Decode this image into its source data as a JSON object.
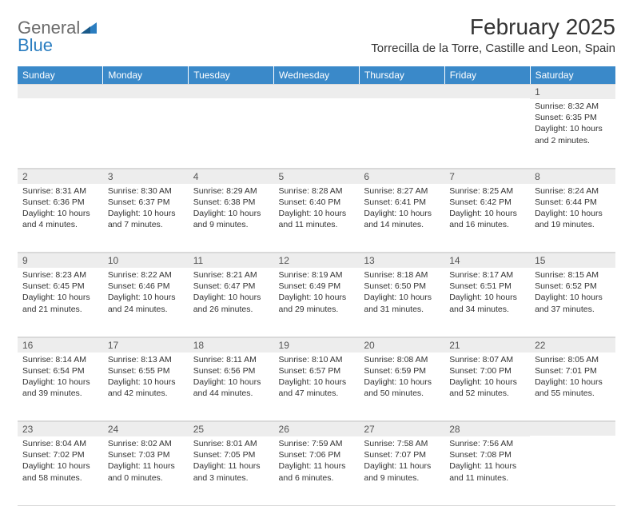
{
  "brand": {
    "word1": "General",
    "word2": "Blue"
  },
  "title": "February 2025",
  "location": "Torrecilla de la Torre, Castille and Leon, Spain",
  "colors": {
    "header_bg": "#3a89c9",
    "header_text": "#ffffff",
    "daynum_bg": "#ededed",
    "grid_border": "#d9d9d9",
    "text": "#333333",
    "logo_gray": "#6b6b6b",
    "logo_blue": "#2a7dc0"
  },
  "weekdays": [
    "Sunday",
    "Monday",
    "Tuesday",
    "Wednesday",
    "Thursday",
    "Friday",
    "Saturday"
  ],
  "first_weekday_index": 6,
  "days": [
    {
      "n": 1,
      "sunrise": "8:32 AM",
      "sunset": "6:35 PM",
      "daylight": "10 hours and 2 minutes."
    },
    {
      "n": 2,
      "sunrise": "8:31 AM",
      "sunset": "6:36 PM",
      "daylight": "10 hours and 4 minutes."
    },
    {
      "n": 3,
      "sunrise": "8:30 AM",
      "sunset": "6:37 PM",
      "daylight": "10 hours and 7 minutes."
    },
    {
      "n": 4,
      "sunrise": "8:29 AM",
      "sunset": "6:38 PM",
      "daylight": "10 hours and 9 minutes."
    },
    {
      "n": 5,
      "sunrise": "8:28 AM",
      "sunset": "6:40 PM",
      "daylight": "10 hours and 11 minutes."
    },
    {
      "n": 6,
      "sunrise": "8:27 AM",
      "sunset": "6:41 PM",
      "daylight": "10 hours and 14 minutes."
    },
    {
      "n": 7,
      "sunrise": "8:25 AM",
      "sunset": "6:42 PM",
      "daylight": "10 hours and 16 minutes."
    },
    {
      "n": 8,
      "sunrise": "8:24 AM",
      "sunset": "6:44 PM",
      "daylight": "10 hours and 19 minutes."
    },
    {
      "n": 9,
      "sunrise": "8:23 AM",
      "sunset": "6:45 PM",
      "daylight": "10 hours and 21 minutes."
    },
    {
      "n": 10,
      "sunrise": "8:22 AM",
      "sunset": "6:46 PM",
      "daylight": "10 hours and 24 minutes."
    },
    {
      "n": 11,
      "sunrise": "8:21 AM",
      "sunset": "6:47 PM",
      "daylight": "10 hours and 26 minutes."
    },
    {
      "n": 12,
      "sunrise": "8:19 AM",
      "sunset": "6:49 PM",
      "daylight": "10 hours and 29 minutes."
    },
    {
      "n": 13,
      "sunrise": "8:18 AM",
      "sunset": "6:50 PM",
      "daylight": "10 hours and 31 minutes."
    },
    {
      "n": 14,
      "sunrise": "8:17 AM",
      "sunset": "6:51 PM",
      "daylight": "10 hours and 34 minutes."
    },
    {
      "n": 15,
      "sunrise": "8:15 AM",
      "sunset": "6:52 PM",
      "daylight": "10 hours and 37 minutes."
    },
    {
      "n": 16,
      "sunrise": "8:14 AM",
      "sunset": "6:54 PM",
      "daylight": "10 hours and 39 minutes."
    },
    {
      "n": 17,
      "sunrise": "8:13 AM",
      "sunset": "6:55 PM",
      "daylight": "10 hours and 42 minutes."
    },
    {
      "n": 18,
      "sunrise": "8:11 AM",
      "sunset": "6:56 PM",
      "daylight": "10 hours and 44 minutes."
    },
    {
      "n": 19,
      "sunrise": "8:10 AM",
      "sunset": "6:57 PM",
      "daylight": "10 hours and 47 minutes."
    },
    {
      "n": 20,
      "sunrise": "8:08 AM",
      "sunset": "6:59 PM",
      "daylight": "10 hours and 50 minutes."
    },
    {
      "n": 21,
      "sunrise": "8:07 AM",
      "sunset": "7:00 PM",
      "daylight": "10 hours and 52 minutes."
    },
    {
      "n": 22,
      "sunrise": "8:05 AM",
      "sunset": "7:01 PM",
      "daylight": "10 hours and 55 minutes."
    },
    {
      "n": 23,
      "sunrise": "8:04 AM",
      "sunset": "7:02 PM",
      "daylight": "10 hours and 58 minutes."
    },
    {
      "n": 24,
      "sunrise": "8:02 AM",
      "sunset": "7:03 PM",
      "daylight": "11 hours and 0 minutes."
    },
    {
      "n": 25,
      "sunrise": "8:01 AM",
      "sunset": "7:05 PM",
      "daylight": "11 hours and 3 minutes."
    },
    {
      "n": 26,
      "sunrise": "7:59 AM",
      "sunset": "7:06 PM",
      "daylight": "11 hours and 6 minutes."
    },
    {
      "n": 27,
      "sunrise": "7:58 AM",
      "sunset": "7:07 PM",
      "daylight": "11 hours and 9 minutes."
    },
    {
      "n": 28,
      "sunrise": "7:56 AM",
      "sunset": "7:08 PM",
      "daylight": "11 hours and 11 minutes."
    }
  ],
  "labels": {
    "sunrise": "Sunrise:",
    "sunset": "Sunset:",
    "daylight": "Daylight:"
  }
}
